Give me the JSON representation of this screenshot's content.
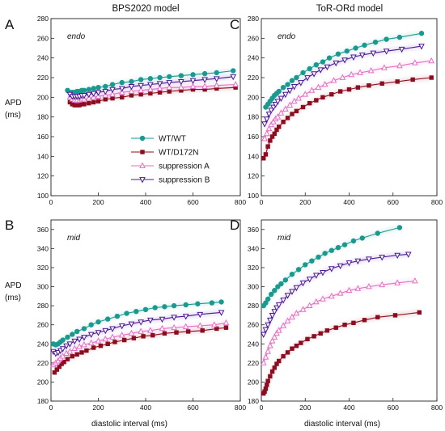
{
  "column_titles": [
    "BPS2020 model",
    "ToR-ORd model"
  ],
  "y_axis_label": [
    "APD",
    "(ms)"
  ],
  "x_axis_label": "diastolic interval (ms)",
  "legend": [
    {
      "label": "WT/WT",
      "color": "#1a9a8f",
      "marker": "circle"
    },
    {
      "label": "WT/D172N",
      "color": "#8b0d1f",
      "marker": "square"
    },
    {
      "label": "suppression A",
      "color": "#e46fc2",
      "marker": "triangle-up-open"
    },
    {
      "label": "suppression B",
      "color": "#4b1896",
      "marker": "triangle-down-open"
    }
  ],
  "chart_data": [
    {
      "panel": "A",
      "type": "scatter",
      "title": "BPS2020 model",
      "region": "endo",
      "xlim": [
        0,
        800
      ],
      "ylim": [
        100,
        280
      ],
      "xticks": [
        0,
        200,
        400,
        600,
        800
      ],
      "yticks": [
        100,
        120,
        140,
        160,
        180,
        200,
        220,
        240,
        260,
        280
      ],
      "series": [
        {
          "name": "WT/WT",
          "x": [
            70,
            80,
            90,
            100,
            110,
            120,
            130,
            140,
            160,
            180,
            200,
            230,
            260,
            300,
            340,
            380,
            420,
            460,
            500,
            550,
            600,
            650,
            700,
            770
          ],
          "y": [
            207,
            205,
            205,
            205,
            206,
            206,
            207,
            207,
            208,
            209,
            210,
            211,
            213,
            215,
            216,
            218,
            219,
            220,
            221,
            222,
            223,
            224,
            225,
            227
          ]
        },
        {
          "name": "WT/D172N",
          "x": [
            80,
            90,
            100,
            110,
            120,
            130,
            140,
            160,
            180,
            200,
            230,
            260,
            300,
            340,
            380,
            420,
            460,
            500,
            550,
            600,
            650,
            700,
            780
          ],
          "y": [
            195,
            193,
            192,
            192,
            192,
            193,
            193,
            194,
            195,
            196,
            198,
            199,
            200,
            202,
            203,
            204,
            205,
            206,
            207,
            208,
            208,
            209,
            210
          ]
        },
        {
          "name": "suppression A",
          "x": [
            80,
            90,
            100,
            110,
            120,
            130,
            140,
            160,
            180,
            200,
            230,
            260,
            300,
            340,
            380,
            420,
            460,
            500,
            550,
            600,
            650,
            700,
            780
          ],
          "y": [
            200,
            198,
            197,
            197,
            197,
            198,
            198,
            199,
            200,
            201,
            202,
            203,
            205,
            206,
            207,
            208,
            209,
            210,
            210,
            211,
            211,
            212,
            213
          ]
        },
        {
          "name": "suppression B",
          "x": [
            80,
            90,
            100,
            110,
            120,
            130,
            140,
            160,
            180,
            200,
            230,
            260,
            300,
            340,
            380,
            420,
            460,
            500,
            550,
            600,
            650,
            700,
            770
          ],
          "y": [
            203,
            201,
            201,
            201,
            201,
            202,
            202,
            203,
            204,
            205,
            206,
            208,
            209,
            211,
            212,
            213,
            214,
            215,
            216,
            217,
            218,
            219,
            221
          ]
        }
      ]
    },
    {
      "panel": "C",
      "type": "scatter",
      "title": "ToR-ORd model",
      "region": "endo",
      "xlim": [
        0,
        800
      ],
      "ylim": [
        100,
        280
      ],
      "xticks": [
        0,
        200,
        400,
        600,
        800
      ],
      "yticks": [
        100,
        120,
        140,
        160,
        180,
        200,
        220,
        240,
        260,
        280
      ],
      "series": [
        {
          "name": "WT/WT",
          "x": [
            20,
            30,
            40,
            50,
            60,
            70,
            80,
            100,
            120,
            140,
            160,
            190,
            220,
            250,
            280,
            310,
            350,
            390,
            430,
            470,
            520,
            570,
            630,
            730
          ],
          "y": [
            190,
            193,
            196,
            199,
            202,
            204,
            206,
            210,
            213,
            217,
            220,
            225,
            229,
            233,
            236,
            240,
            244,
            247,
            250,
            253,
            256,
            259,
            261,
            265
          ]
        },
        {
          "name": "WT/D172N",
          "x": [
            10,
            20,
            30,
            40,
            50,
            60,
            70,
            80,
            100,
            120,
            140,
            160,
            190,
            220,
            250,
            280,
            320,
            360,
            400,
            440,
            490,
            550,
            620,
            690,
            775
          ],
          "y": [
            138,
            142,
            150,
            156,
            160,
            163,
            167,
            170,
            175,
            179,
            183,
            186,
            190,
            194,
            197,
            200,
            203,
            206,
            208,
            210,
            212,
            214,
            216,
            218,
            220
          ]
        },
        {
          "name": "suppression A",
          "x": [
            15,
            25,
            35,
            45,
            55,
            65,
            75,
            90,
            110,
            130,
            150,
            170,
            200,
            230,
            260,
            290,
            330,
            370,
            410,
            450,
            500,
            560,
            630,
            700,
            775
          ],
          "y": [
            158,
            163,
            168,
            172,
            175,
            178,
            180,
            184,
            188,
            192,
            196,
            199,
            203,
            207,
            210,
            213,
            217,
            220,
            223,
            225,
            227,
            230,
            232,
            235,
            237
          ]
        },
        {
          "name": "suppression B",
          "x": [
            15,
            25,
            35,
            45,
            55,
            65,
            75,
            90,
            110,
            130,
            150,
            180,
            210,
            240,
            270,
            300,
            340,
            380,
            420,
            460,
            510,
            570,
            640,
            730
          ],
          "y": [
            173,
            178,
            183,
            187,
            190,
            193,
            196,
            199,
            203,
            207,
            211,
            215,
            220,
            224,
            228,
            231,
            235,
            238,
            241,
            243,
            245,
            247,
            249,
            252
          ]
        }
      ]
    },
    {
      "panel": "B",
      "type": "scatter",
      "region": "mid",
      "xlim": [
        0,
        800
      ],
      "ylim": [
        180,
        370
      ],
      "xticks": [
        0,
        200,
        400,
        600,
        800
      ],
      "yticks": [
        180,
        200,
        220,
        240,
        260,
        280,
        300,
        320,
        340,
        360
      ],
      "series": [
        {
          "name": "WT/WT",
          "x": [
            10,
            20,
            30,
            40,
            50,
            70,
            90,
            110,
            140,
            170,
            200,
            240,
            280,
            320,
            360,
            400,
            440,
            480,
            520,
            570,
            620,
            680,
            720
          ],
          "y": [
            240,
            239,
            240,
            242,
            244,
            247,
            250,
            253,
            256,
            260,
            263,
            266,
            269,
            272,
            274,
            276,
            278,
            279,
            280,
            281,
            282,
            283,
            284
          ]
        },
        {
          "name": "WT/D172N",
          "x": [
            15,
            25,
            35,
            45,
            55,
            70,
            90,
            110,
            130,
            150,
            180,
            210,
            240,
            270,
            310,
            350,
            390,
            430,
            480,
            530,
            580,
            640,
            700,
            740
          ],
          "y": [
            210,
            213,
            216,
            219,
            221,
            224,
            227,
            229,
            231,
            233,
            236,
            238,
            240,
            242,
            244,
            246,
            248,
            249,
            251,
            252,
            253,
            254,
            256,
            257
          ]
        },
        {
          "name": "suppression A",
          "x": [
            10,
            20,
            30,
            40,
            50,
            65,
            80,
            100,
            120,
            140,
            170,
            200,
            230,
            260,
            300,
            340,
            380,
            420,
            470,
            520,
            570,
            630,
            690,
            740
          ],
          "y": [
            218,
            220,
            222,
            225,
            227,
            230,
            232,
            235,
            237,
            239,
            241,
            243,
            245,
            247,
            249,
            251,
            253,
            254,
            256,
            257,
            258,
            259,
            260,
            262
          ]
        },
        {
          "name": "suppression B",
          "x": [
            10,
            20,
            30,
            40,
            50,
            65,
            80,
            100,
            120,
            140,
            170,
            200,
            230,
            260,
            300,
            340,
            380,
            420,
            470,
            520,
            570,
            630,
            720
          ],
          "y": [
            232,
            230,
            231,
            233,
            235,
            238,
            240,
            243,
            245,
            247,
            250,
            252,
            254,
            256,
            259,
            261,
            263,
            265,
            266,
            268,
            269,
            271,
            273
          ]
        }
      ]
    },
    {
      "panel": "D",
      "type": "scatter",
      "region": "mid",
      "xlim": [
        0,
        800
      ],
      "ylim": [
        180,
        370
      ],
      "xticks": [
        0,
        200,
        400,
        600,
        800
      ],
      "yticks": [
        180,
        200,
        220,
        240,
        260,
        280,
        300,
        320,
        340,
        360
      ],
      "series": [
        {
          "name": "WT/WT",
          "x": [
            10,
            20,
            30,
            45,
            60,
            75,
            90,
            110,
            140,
            170,
            200,
            230,
            260,
            290,
            320,
            350,
            380,
            420,
            460,
            530,
            630
          ],
          "y": [
            280,
            283,
            287,
            292,
            296,
            300,
            303,
            307,
            313,
            318,
            323,
            327,
            331,
            335,
            338,
            341,
            344,
            348,
            351,
            356,
            362
          ]
        },
        {
          "name": "WT/D172N",
          "x": [
            10,
            15,
            20,
            25,
            30,
            40,
            50,
            60,
            70,
            80,
            100,
            120,
            140,
            160,
            180,
            210,
            240,
            270,
            300,
            340,
            380,
            420,
            470,
            530,
            610,
            720
          ],
          "y": [
            188,
            190,
            193,
            197,
            201,
            206,
            211,
            215,
            219,
            222,
            227,
            231,
            235,
            238,
            241,
            245,
            248,
            251,
            254,
            257,
            260,
            262,
            265,
            268,
            270,
            273
          ]
        },
        {
          "name": "suppression A",
          "x": [
            10,
            20,
            30,
            40,
            50,
            60,
            70,
            80,
            100,
            120,
            140,
            160,
            190,
            220,
            250,
            280,
            320,
            360,
            400,
            440,
            490,
            550,
            620,
            700
          ],
          "y": [
            220,
            226,
            232,
            238,
            243,
            247,
            251,
            254,
            259,
            264,
            268,
            272,
            276,
            280,
            284,
            287,
            290,
            293,
            296,
            298,
            300,
            302,
            304,
            306
          ]
        },
        {
          "name": "suppression B",
          "x": [
            10,
            20,
            30,
            40,
            50,
            60,
            70,
            80,
            100,
            120,
            140,
            160,
            190,
            220,
            250,
            280,
            320,
            360,
            400,
            440,
            490,
            550,
            620,
            670
          ],
          "y": [
            250,
            255,
            260,
            265,
            270,
            274,
            278,
            281,
            286,
            291,
            295,
            299,
            304,
            308,
            312,
            315,
            319,
            322,
            325,
            327,
            329,
            331,
            333,
            334
          ]
        }
      ]
    }
  ]
}
